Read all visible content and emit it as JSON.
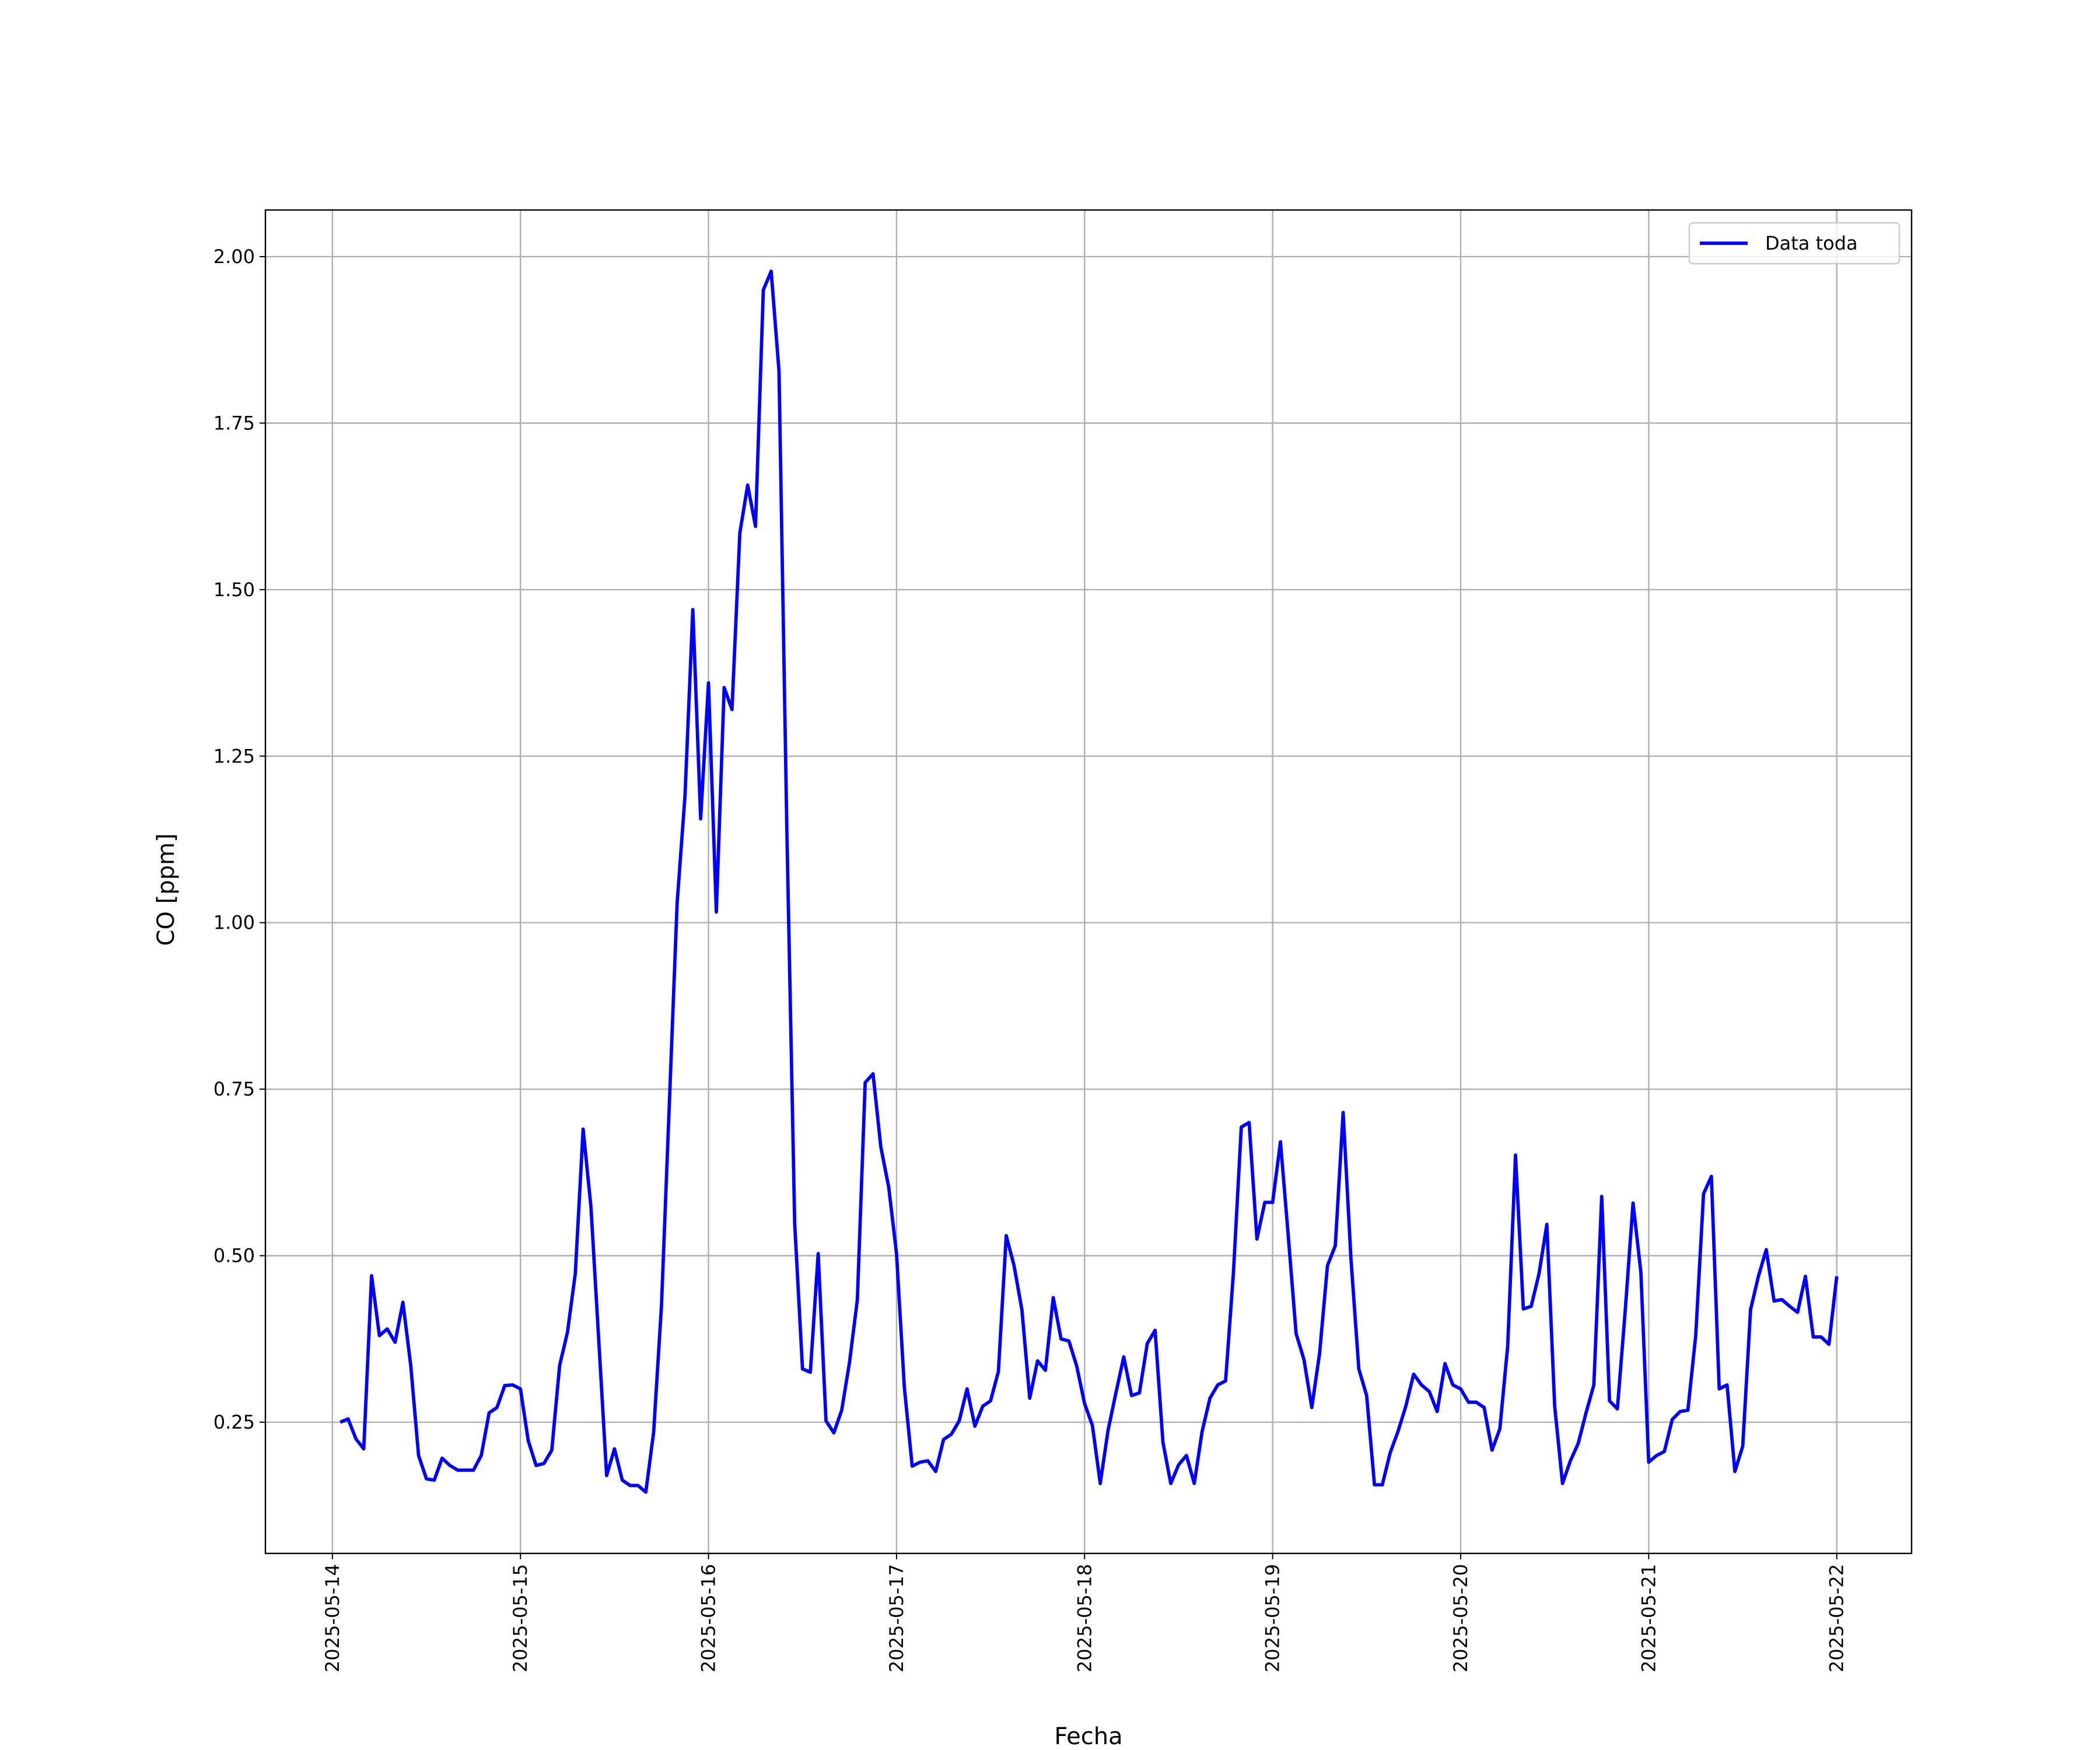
{
  "chart_data": {
    "type": "line",
    "xlabel": "Fecha",
    "ylabel": "CO [ppm]",
    "legend": "upper right",
    "grid": true,
    "x": [
      "2025-05-14 01:00",
      "2025-05-14 02:00",
      "2025-05-14 03:00",
      "2025-05-14 04:00",
      "2025-05-14 05:00",
      "2025-05-14 06:00",
      "2025-05-14 07:00",
      "2025-05-14 08:00",
      "2025-05-14 09:00",
      "2025-05-14 10:00",
      "2025-05-14 11:00",
      "2025-05-14 12:00",
      "2025-05-14 13:00",
      "2025-05-14 14:00",
      "2025-05-14 15:00",
      "2025-05-14 16:00",
      "2025-05-14 17:00",
      "2025-05-14 18:00",
      "2025-05-14 19:00",
      "2025-05-14 20:00",
      "2025-05-14 21:00",
      "2025-05-14 22:00",
      "2025-05-14 23:00",
      "2025-05-15 00:00",
      "2025-05-15 01:00",
      "2025-05-15 02:00",
      "2025-05-15 03:00",
      "2025-05-15 04:00",
      "2025-05-15 05:00",
      "2025-05-15 06:00",
      "2025-05-15 07:00",
      "2025-05-15 08:00",
      "2025-05-15 09:00",
      "2025-05-15 10:00",
      "2025-05-15 11:00",
      "2025-05-15 12:00",
      "2025-05-15 13:00",
      "2025-05-15 14:00",
      "2025-05-15 15:00",
      "2025-05-15 16:00",
      "2025-05-15 17:00",
      "2025-05-15 18:00",
      "2025-05-15 19:00",
      "2025-05-15 20:00",
      "2025-05-15 21:00",
      "2025-05-15 22:00",
      "2025-05-15 23:00",
      "2025-05-16 00:00",
      "2025-05-16 01:00",
      "2025-05-16 02:00",
      "2025-05-16 03:00",
      "2025-05-16 04:00",
      "2025-05-16 05:00",
      "2025-05-16 06:00",
      "2025-05-16 07:00",
      "2025-05-16 08:00",
      "2025-05-16 09:00",
      "2025-05-16 10:00",
      "2025-05-16 11:00",
      "2025-05-16 12:00",
      "2025-05-16 13:00",
      "2025-05-16 14:00",
      "2025-05-16 15:00",
      "2025-05-16 16:00",
      "2025-05-16 17:00",
      "2025-05-16 18:00",
      "2025-05-16 19:00",
      "2025-05-16 20:00",
      "2025-05-16 21:00",
      "2025-05-16 22:00",
      "2025-05-16 23:00",
      "2025-05-17 00:00",
      "2025-05-17 01:00",
      "2025-05-17 02:00",
      "2025-05-17 03:00",
      "2025-05-17 04:00",
      "2025-05-17 05:00",
      "2025-05-17 06:00",
      "2025-05-17 07:00",
      "2025-05-17 08:00",
      "2025-05-17 09:00",
      "2025-05-17 10:00",
      "2025-05-17 11:00",
      "2025-05-17 12:00",
      "2025-05-17 13:00",
      "2025-05-17 14:00",
      "2025-05-17 15:00",
      "2025-05-17 16:00",
      "2025-05-17 17:00",
      "2025-05-17 18:00",
      "2025-05-17 19:00",
      "2025-05-17 20:00",
      "2025-05-17 21:00",
      "2025-05-17 22:00",
      "2025-05-17 23:00",
      "2025-05-18 00:00",
      "2025-05-18 01:00",
      "2025-05-18 02:00",
      "2025-05-18 03:00",
      "2025-05-18 04:00",
      "2025-05-18 05:00",
      "2025-05-18 06:00",
      "2025-05-18 07:00",
      "2025-05-18 08:00",
      "2025-05-18 09:00",
      "2025-05-18 10:00",
      "2025-05-18 11:00",
      "2025-05-18 12:00",
      "2025-05-18 13:00",
      "2025-05-18 14:00",
      "2025-05-18 15:00",
      "2025-05-18 16:00",
      "2025-05-18 17:00",
      "2025-05-18 18:00",
      "2025-05-18 19:00",
      "2025-05-18 20:00",
      "2025-05-18 21:00",
      "2025-05-18 22:00",
      "2025-05-18 23:00",
      "2025-05-19 00:00",
      "2025-05-19 01:00",
      "2025-05-19 02:00",
      "2025-05-19 03:00",
      "2025-05-19 04:00",
      "2025-05-19 05:00",
      "2025-05-19 06:00",
      "2025-05-19 07:00",
      "2025-05-19 08:00",
      "2025-05-19 09:00",
      "2025-05-19 10:00",
      "2025-05-19 11:00",
      "2025-05-19 12:00",
      "2025-05-19 13:00",
      "2025-05-19 14:00",
      "2025-05-19 15:00",
      "2025-05-19 16:00",
      "2025-05-19 17:00",
      "2025-05-19 18:00",
      "2025-05-19 19:00",
      "2025-05-19 20:00",
      "2025-05-19 21:00",
      "2025-05-19 22:00",
      "2025-05-19 23:00",
      "2025-05-20 00:00",
      "2025-05-20 01:00",
      "2025-05-20 02:00",
      "2025-05-20 03:00",
      "2025-05-20 04:00",
      "2025-05-20 05:00",
      "2025-05-20 06:00",
      "2025-05-20 07:00",
      "2025-05-20 08:00",
      "2025-05-20 09:00",
      "2025-05-20 10:00",
      "2025-05-20 11:00",
      "2025-05-20 12:00",
      "2025-05-20 13:00",
      "2025-05-20 14:00",
      "2025-05-20 15:00",
      "2025-05-20 16:00",
      "2025-05-20 17:00",
      "2025-05-20 18:00",
      "2025-05-20 19:00",
      "2025-05-20 20:00",
      "2025-05-20 21:00",
      "2025-05-20 22:00",
      "2025-05-20 23:00",
      "2025-05-21 00:00",
      "2025-05-21 01:00",
      "2025-05-21 02:00",
      "2025-05-21 03:00",
      "2025-05-21 04:00",
      "2025-05-21 05:00",
      "2025-05-21 06:00",
      "2025-05-21 07:00",
      "2025-05-21 08:00",
      "2025-05-21 09:00",
      "2025-05-21 10:00",
      "2025-05-21 11:00",
      "2025-05-21 12:00",
      "2025-05-21 13:00",
      "2025-05-21 14:00",
      "2025-05-21 15:00",
      "2025-05-21 16:00",
      "2025-05-21 17:00",
      "2025-05-21 18:00",
      "2025-05-21 19:00",
      "2025-05-21 20:00",
      "2025-05-21 21:00",
      "2025-05-21 22:00",
      "2025-05-21 23:00",
      "2025-05-22 00:00"
    ],
    "series": [
      {
        "name": "Data toda",
        "color": "#0000ff",
        "values": [
          0.25,
          0.255,
          0.225,
          0.21,
          0.47,
          0.38,
          0.39,
          0.37,
          0.43,
          0.335,
          0.2,
          0.165,
          0.163,
          0.196,
          0.185,
          0.178,
          0.178,
          0.178,
          0.2,
          0.264,
          0.272,
          0.305,
          0.306,
          0.3,
          0.222,
          0.185,
          0.188,
          0.208,
          0.335,
          0.385,
          0.473,
          0.69,
          0.573,
          0.372,
          0.17,
          0.21,
          0.163,
          0.155,
          0.155,
          0.145,
          0.235,
          0.425,
          0.727,
          1.03,
          1.19,
          1.47,
          1.156,
          1.36,
          1.016,
          1.353,
          1.32,
          1.585,
          1.657,
          1.595,
          1.95,
          1.978,
          1.828,
          1.14,
          0.549,
          0.33,
          0.325,
          0.503,
          0.252,
          0.234,
          0.268,
          0.34,
          0.434,
          0.76,
          0.773,
          0.663,
          0.603,
          0.503,
          0.302,
          0.184,
          0.19,
          0.192,
          0.176,
          0.224,
          0.232,
          0.252,
          0.3,
          0.244,
          0.274,
          0.282,
          0.326,
          0.53,
          0.485,
          0.419,
          0.286,
          0.342,
          0.328,
          0.437,
          0.375,
          0.372,
          0.334,
          0.278,
          0.245,
          0.158,
          0.238,
          0.294,
          0.348,
          0.29,
          0.294,
          0.368,
          0.388,
          0.22,
          0.158,
          0.186,
          0.2,
          0.158,
          0.236,
          0.286,
          0.306,
          0.312,
          0.475,
          0.693,
          0.7,
          0.525,
          0.58,
          0.58,
          0.671,
          0.529,
          0.383,
          0.344,
          0.272,
          0.354,
          0.485,
          0.515,
          0.715,
          0.495,
          0.33,
          0.29,
          0.156,
          0.156,
          0.204,
          0.236,
          0.274,
          0.322,
          0.306,
          0.296,
          0.266,
          0.338,
          0.306,
          0.3,
          0.28,
          0.28,
          0.272,
          0.208,
          0.24,
          0.364,
          0.651,
          0.42,
          0.424,
          0.473,
          0.547,
          0.274,
          0.158,
          0.192,
          0.218,
          0.264,
          0.306,
          0.589,
          0.282,
          0.27,
          0.417,
          0.579,
          0.475,
          0.19,
          0.2,
          0.206,
          0.254,
          0.266,
          0.268,
          0.38,
          0.593,
          0.619,
          0.3,
          0.306,
          0.176,
          0.214,
          0.419,
          0.469,
          0.509,
          0.432,
          0.434,
          0.424,
          0.415,
          0.469,
          0.378,
          0.378,
          0.367,
          0.469
        ]
      }
    ],
    "xlim": [
      "2025-05-13 15:27",
      "2025-05-22 09:33"
    ],
    "xticks": [
      "2025-05-14",
      "2025-05-15",
      "2025-05-16",
      "2025-05-17",
      "2025-05-18",
      "2025-05-19",
      "2025-05-20",
      "2025-05-21",
      "2025-05-22"
    ],
    "ylim": [
      0.053,
      2.07
    ],
    "yticks": [
      0.25,
      {
        "value": 0.5,
        "label": "0.50"
      },
      0.75,
      {
        "value": 1,
        "label": "1.00"
      },
      1.25,
      {
        "value": 1.5,
        "label": "1.50"
      },
      1.75,
      {
        "value": 2,
        "label": "2.00"
      }
    ]
  }
}
